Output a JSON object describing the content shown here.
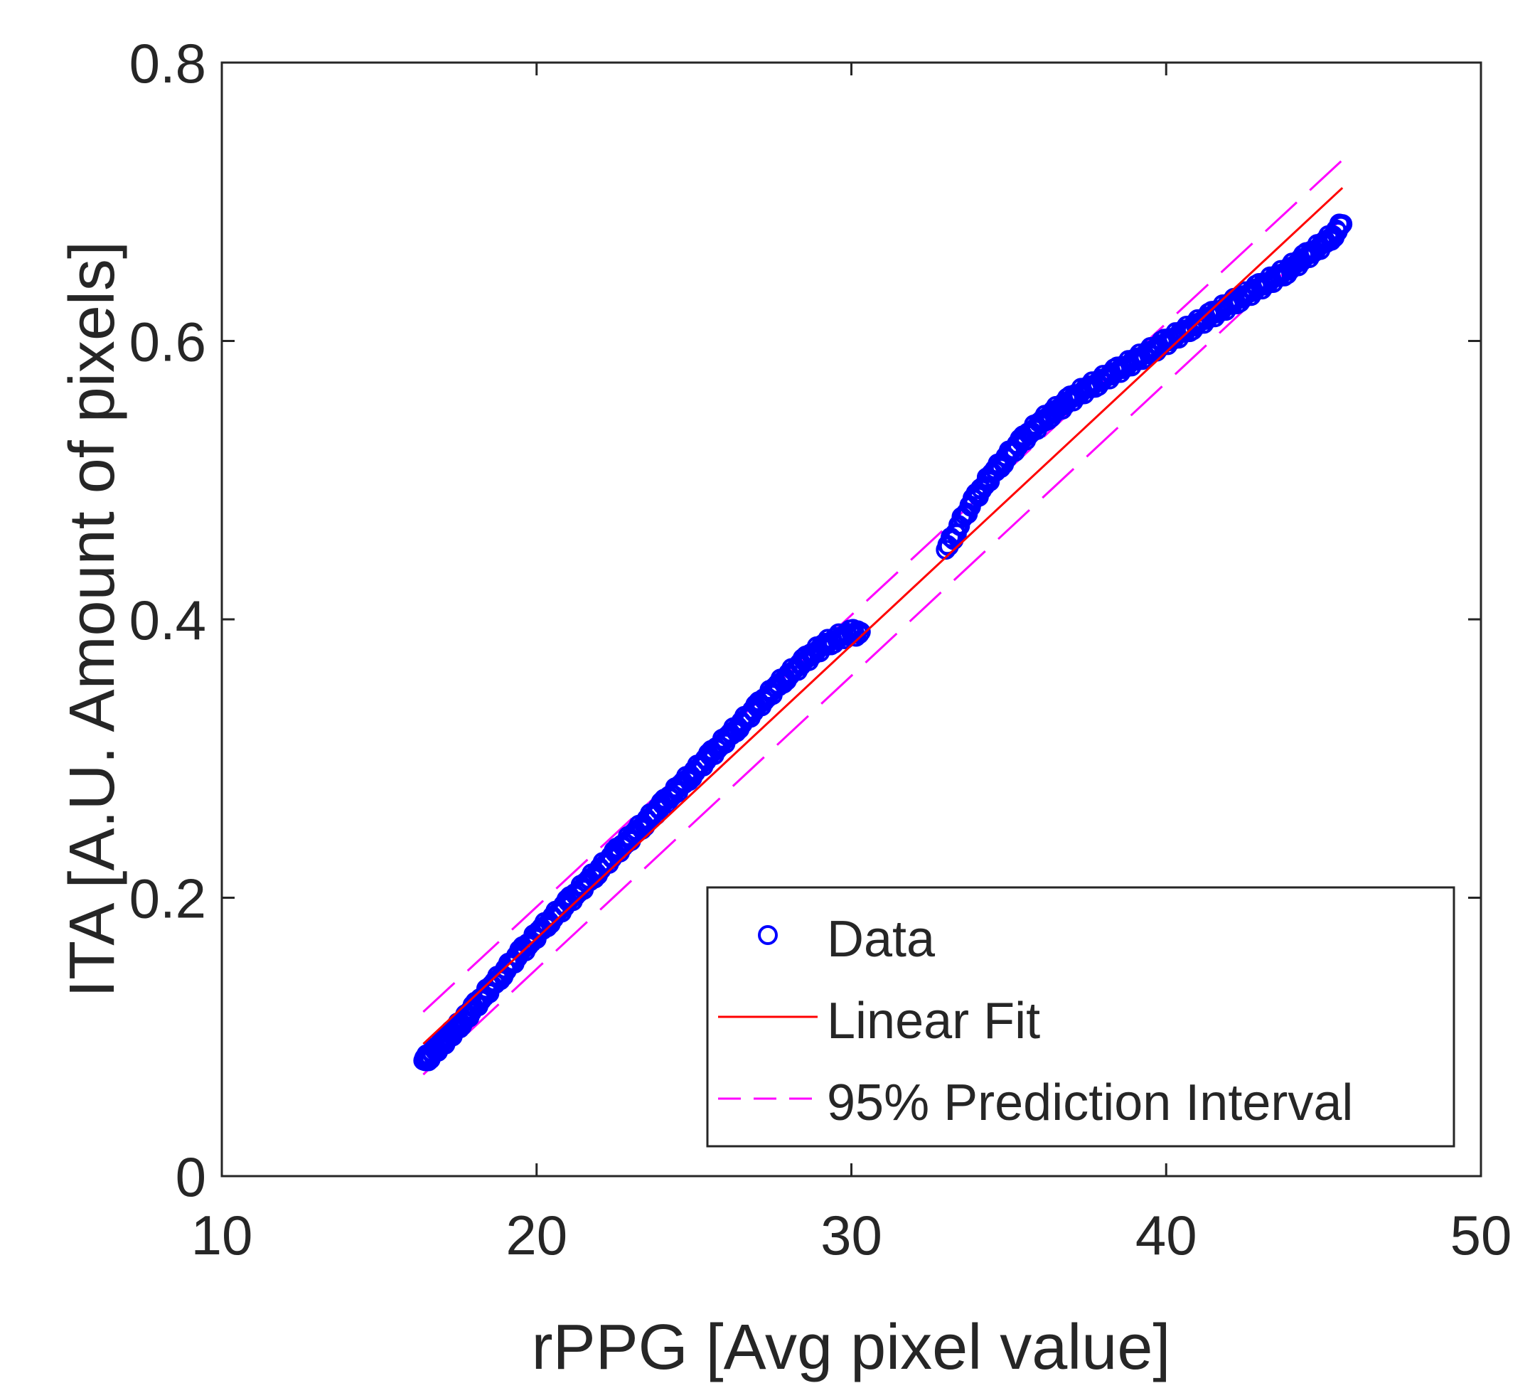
{
  "chart_data": {
    "type": "scatter",
    "title": "",
    "xlabel": "rPPG [Avg pixel value]",
    "ylabel": "ITA [A.U. Amount of pixels]",
    "xlim": [
      10,
      50
    ],
    "ylim": [
      0,
      0.8
    ],
    "xticks": [
      10,
      20,
      30,
      40,
      50
    ],
    "yticks": [
      0,
      0.2,
      0.4,
      0.6,
      0.8
    ],
    "xtick_labels": [
      "10",
      "20",
      "30",
      "40",
      "50"
    ],
    "ytick_labels": [
      "0",
      "0.2",
      "0.4",
      "0.6",
      "0.8"
    ],
    "grid": false,
    "legend_position": "bottom-right",
    "colors": {
      "data": "#0000ff",
      "fit": "#ff0000",
      "interval": "#ff00ff",
      "axis": "#262626"
    },
    "series": [
      {
        "name": "Data",
        "kind": "markers",
        "marker": "circle",
        "x": [
          16.4,
          16.6,
          16.8,
          17.0,
          17.2,
          17.4,
          17.6,
          17.8,
          18.0,
          18.3,
          18.6,
          18.9,
          19.2,
          19.5,
          19.8,
          20.1,
          20.4,
          20.7,
          21.0,
          21.3,
          21.6,
          21.9,
          22.2,
          22.5,
          22.8,
          23.1,
          23.4,
          23.7,
          24.0,
          24.3,
          24.6,
          24.9,
          25.2,
          25.5,
          25.8,
          26.1,
          26.4,
          26.7,
          27.0,
          27.3,
          27.6,
          27.9,
          28.2,
          28.5,
          28.8,
          29.1,
          29.4,
          29.7,
          30.0,
          30.3,
          33.0,
          33.3,
          33.6,
          33.9,
          34.2,
          34.5,
          34.8,
          35.1,
          35.4,
          35.7,
          36.0,
          36.3,
          36.6,
          36.9,
          37.2,
          37.5,
          37.8,
          38.1,
          38.4,
          38.7,
          39.0,
          39.3,
          39.6,
          39.9,
          40.2,
          40.5,
          40.8,
          41.1,
          41.4,
          41.7,
          42.0,
          42.3,
          42.6,
          42.9,
          43.2,
          43.5,
          43.8,
          44.1,
          44.4,
          44.7,
          45.0,
          45.3,
          45.6
        ],
        "y": [
          0.083,
          0.086,
          0.091,
          0.095,
          0.1,
          0.105,
          0.11,
          0.115,
          0.121,
          0.129,
          0.137,
          0.145,
          0.153,
          0.161,
          0.168,
          0.176,
          0.183,
          0.19,
          0.197,
          0.204,
          0.211,
          0.218,
          0.225,
          0.232,
          0.239,
          0.246,
          0.253,
          0.26,
          0.267,
          0.274,
          0.281,
          0.288,
          0.295,
          0.302,
          0.309,
          0.316,
          0.323,
          0.33,
          0.337,
          0.344,
          0.351,
          0.358,
          0.364,
          0.37,
          0.376,
          0.381,
          0.385,
          0.388,
          0.39,
          0.391,
          0.45,
          0.462,
          0.475,
          0.486,
          0.496,
          0.505,
          0.513,
          0.521,
          0.528,
          0.535,
          0.541,
          0.547,
          0.552,
          0.557,
          0.562,
          0.566,
          0.57,
          0.574,
          0.578,
          0.582,
          0.586,
          0.59,
          0.594,
          0.598,
          0.602,
          0.606,
          0.61,
          0.614,
          0.618,
          0.622,
          0.626,
          0.63,
          0.634,
          0.638,
          0.642,
          0.646,
          0.65,
          0.655,
          0.66,
          0.665,
          0.67,
          0.676,
          0.684
        ]
      },
      {
        "name": "Linear Fit",
        "kind": "line",
        "x": [
          16.4,
          45.6
        ],
        "y": [
          0.095,
          0.71
        ]
      },
      {
        "name": "95% Prediction Interval",
        "kind": "dashed-band",
        "x": [
          16.4,
          45.6
        ],
        "upper": [
          0.118,
          0.73
        ],
        "lower": [
          0.073,
          0.688
        ]
      }
    ]
  }
}
